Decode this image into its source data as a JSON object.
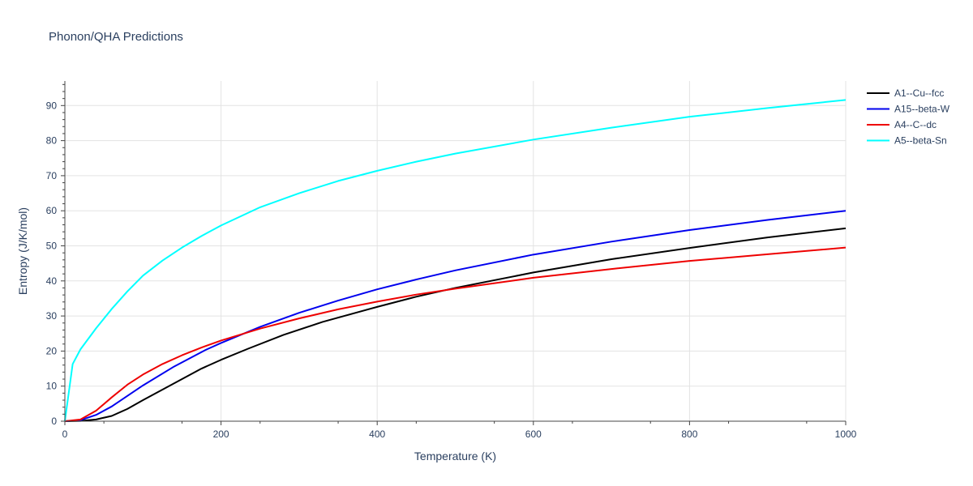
{
  "chart_data": {
    "type": "line",
    "title": "Phonon/QHA Predictions",
    "xlabel": "Temperature (K)",
    "ylabel": "Entropy (J/K/mol)",
    "xlim": [
      0,
      1000
    ],
    "ylim": [
      0,
      97
    ],
    "xticks": [
      0,
      200,
      400,
      600,
      800,
      1000
    ],
    "yticks": [
      0,
      10,
      20,
      30,
      40,
      50,
      60,
      70,
      80,
      90
    ],
    "grid": true,
    "legend_position": "top-right",
    "series": [
      {
        "name": "A1--Cu--fcc",
        "color": "#000000",
        "x": [
          0,
          20,
          40,
          60,
          80,
          100,
          125,
          150,
          175,
          200,
          235,
          280,
          330,
          400,
          450,
          500,
          550,
          600,
          700,
          800,
          900,
          1000
        ],
        "y": [
          0,
          0.1,
          0.5,
          1.5,
          3.5,
          6.0,
          9.0,
          12.0,
          15.0,
          17.5,
          20.7,
          24.6,
          28.3,
          32.6,
          35.5,
          38.0,
          40.2,
          42.4,
          46.2,
          49.4,
          52.4,
          55.0
        ]
      },
      {
        "name": "A15--beta-W",
        "color": "#0000ee",
        "x": [
          0,
          20,
          40,
          60,
          80,
          100,
          140,
          180,
          200,
          250,
          300,
          350,
          400,
          450,
          500,
          600,
          700,
          800,
          900,
          1000
        ],
        "y": [
          0,
          0.3,
          1.8,
          4.2,
          7.2,
          10.2,
          15.6,
          20.3,
          22.3,
          26.9,
          30.9,
          34.4,
          37.6,
          40.4,
          43.0,
          47.5,
          51.2,
          54.5,
          57.4,
          60.0
        ]
      },
      {
        "name": "A4--C--dc",
        "color": "#ee0000",
        "x": [
          0,
          20,
          40,
          60,
          80,
          100,
          125,
          150,
          175,
          200,
          250,
          300,
          350,
          400,
          450,
          500,
          600,
          700,
          800,
          900,
          1000
        ],
        "y": [
          0,
          0.5,
          3.0,
          6.8,
          10.4,
          13.3,
          16.3,
          18.8,
          21.0,
          23.0,
          26.4,
          29.3,
          31.9,
          34.1,
          36.1,
          37.8,
          40.9,
          43.4,
          45.7,
          47.6,
          49.5
        ]
      },
      {
        "name": "A5--beta-Sn",
        "color": "#00ffff",
        "x": [
          0,
          10,
          20,
          40,
          60,
          80,
          100,
          125,
          150,
          175,
          200,
          250,
          300,
          350,
          400,
          450,
          500,
          600,
          700,
          800,
          900,
          1000
        ],
        "y": [
          0,
          16.3,
          20.5,
          26.5,
          32.0,
          37.0,
          41.5,
          45.8,
          49.5,
          52.8,
          55.8,
          61.0,
          65.0,
          68.5,
          71.4,
          74.0,
          76.3,
          80.3,
          83.7,
          86.8,
          89.3,
          91.6
        ]
      }
    ]
  }
}
